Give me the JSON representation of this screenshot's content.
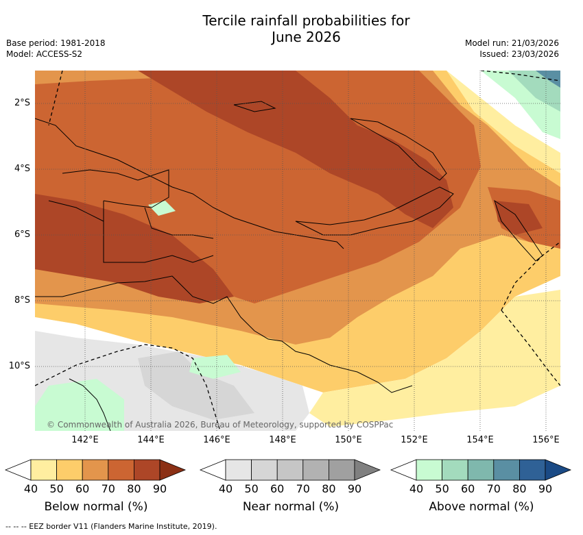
{
  "title_line1": "Tercile rainfall probabilities for",
  "title_line2": "June 2026",
  "base_period": "Base period: 1981-2018",
  "model": "Model: ACCESS-S2",
  "model_run": "Model run: 21/03/2026",
  "issued": "Issued: 23/03/2026",
  "lat_labels": [
    "2°S",
    "4°S",
    "6°S",
    "8°S",
    "10°S"
  ],
  "lon_labels": [
    "142°E",
    "144°E",
    "146°E",
    "148°E",
    "150°E",
    "152°E",
    "154°E",
    "156°E"
  ],
  "copyright": "© Commonwealth of Australia 2026, Bureau of Meteorology, supported by COSPPac",
  "footer": "-- -- -- EEZ border V11 (Flanders Marine Institute, 2019).",
  "colorbars": [
    {
      "label": "Below normal (%)",
      "ticks": [
        "40",
        "50",
        "60",
        "70",
        "80",
        "90"
      ],
      "colors": [
        "#ffffff",
        "#ffeea0",
        "#fdcd6a",
        "#e3954c",
        "#cc6532",
        "#ad4627",
        "#8b3015"
      ]
    },
    {
      "label": "Near normal (%)",
      "ticks": [
        "40",
        "50",
        "60",
        "70",
        "80",
        "90"
      ],
      "colors": [
        "#ffffff",
        "#e6e6e6",
        "#d6d6d6",
        "#c6c6c6",
        "#b2b2b2",
        "#a0a0a0",
        "#808080"
      ]
    },
    {
      "label": "Above normal (%)",
      "ticks": [
        "40",
        "50",
        "60",
        "70",
        "80",
        "90"
      ],
      "colors": [
        "#ffffff",
        "#c8fbd2",
        "#a3dbbd",
        "#7fb8ad",
        "#5a8fa3",
        "#2f6196",
        "#1a4a85"
      ]
    }
  ]
}
